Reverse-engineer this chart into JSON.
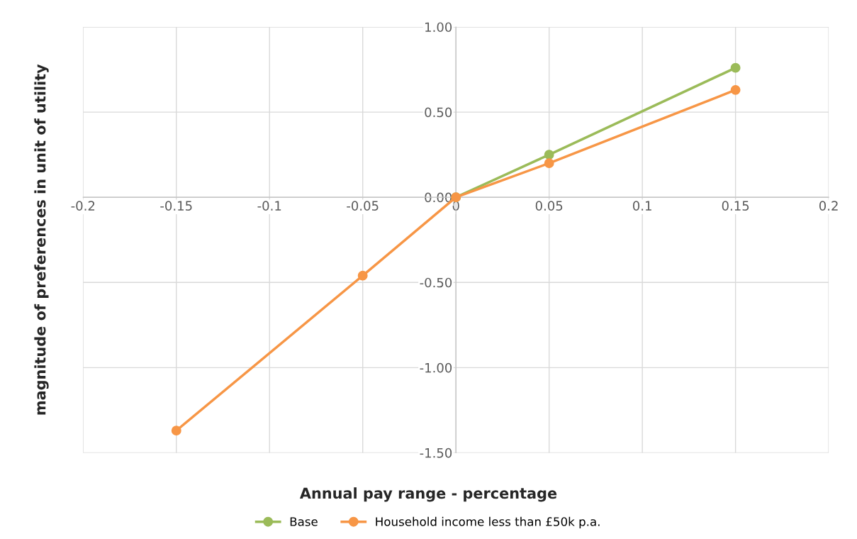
{
  "chart_data": {
    "type": "line",
    "xlabel": "Annual pay range - percentage",
    "ylabel": "magnitude of preferences in unit of utility",
    "x": [
      -0.15,
      -0.05,
      0,
      0.05,
      0.15
    ],
    "series": [
      {
        "name": "Base",
        "color": "#9bbb59",
        "values": [
          null,
          null,
          0,
          0.25,
          0.76
        ]
      },
      {
        "name": "Household income less than £50k p.a.",
        "color": "#f79646",
        "values": [
          -1.37,
          -0.46,
          0,
          0.2,
          0.63
        ]
      }
    ],
    "xlim": [
      -0.2,
      0.2
    ],
    "xticks": [
      -0.2,
      -0.15,
      -0.1,
      -0.05,
      0,
      0.05,
      0.1,
      0.15,
      0.2
    ],
    "ylim": [
      -1.5,
      1.0
    ],
    "yticks": [
      {
        "value": -1.5,
        "label": "-1.50"
      },
      {
        "value": -1.0,
        "label": "-1.00"
      },
      {
        "value": -0.5,
        "label": "-0.50"
      },
      {
        "value": 0,
        "label": "0.00"
      },
      {
        "value": 0.5,
        "label": "0.50"
      },
      {
        "value": 1.0,
        "label": "1.00"
      }
    ],
    "grid": true,
    "legend": "bottom",
    "marker": "circle",
    "line_style": "solid"
  }
}
